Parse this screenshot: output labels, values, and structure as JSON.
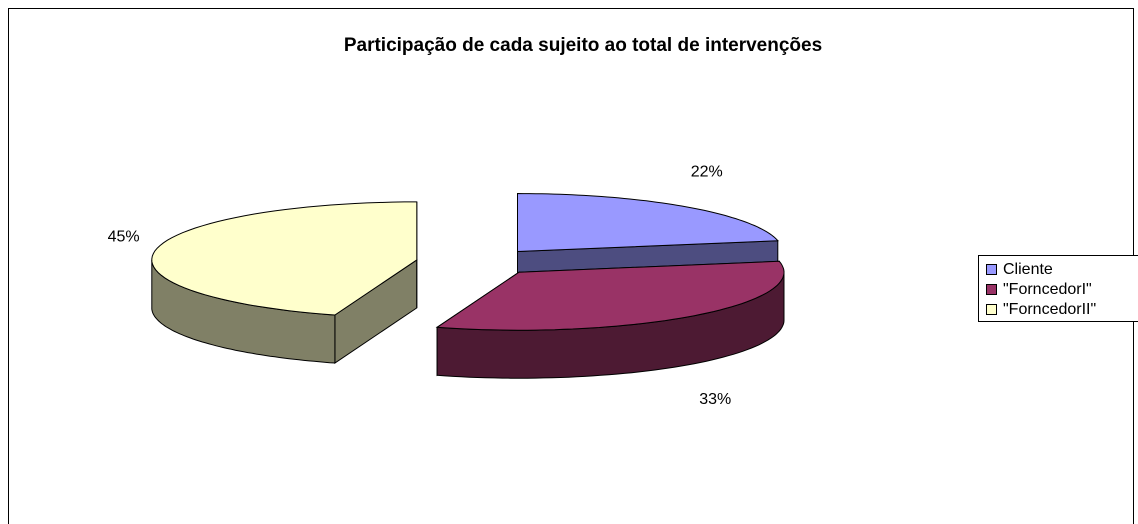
{
  "chart_data": {
    "type": "pie",
    "title": "Participação de cada sujeito ao total de intervenções",
    "categories": [
      "Cliente",
      "\"ForncedorI\"",
      "\"ForncedorII\""
    ],
    "values": [
      22,
      33,
      45
    ],
    "value_labels": [
      "22%",
      "33%",
      "45%"
    ],
    "colors": [
      "#9999ff",
      "#993366",
      "#ffffcc"
    ],
    "legend": "right"
  }
}
